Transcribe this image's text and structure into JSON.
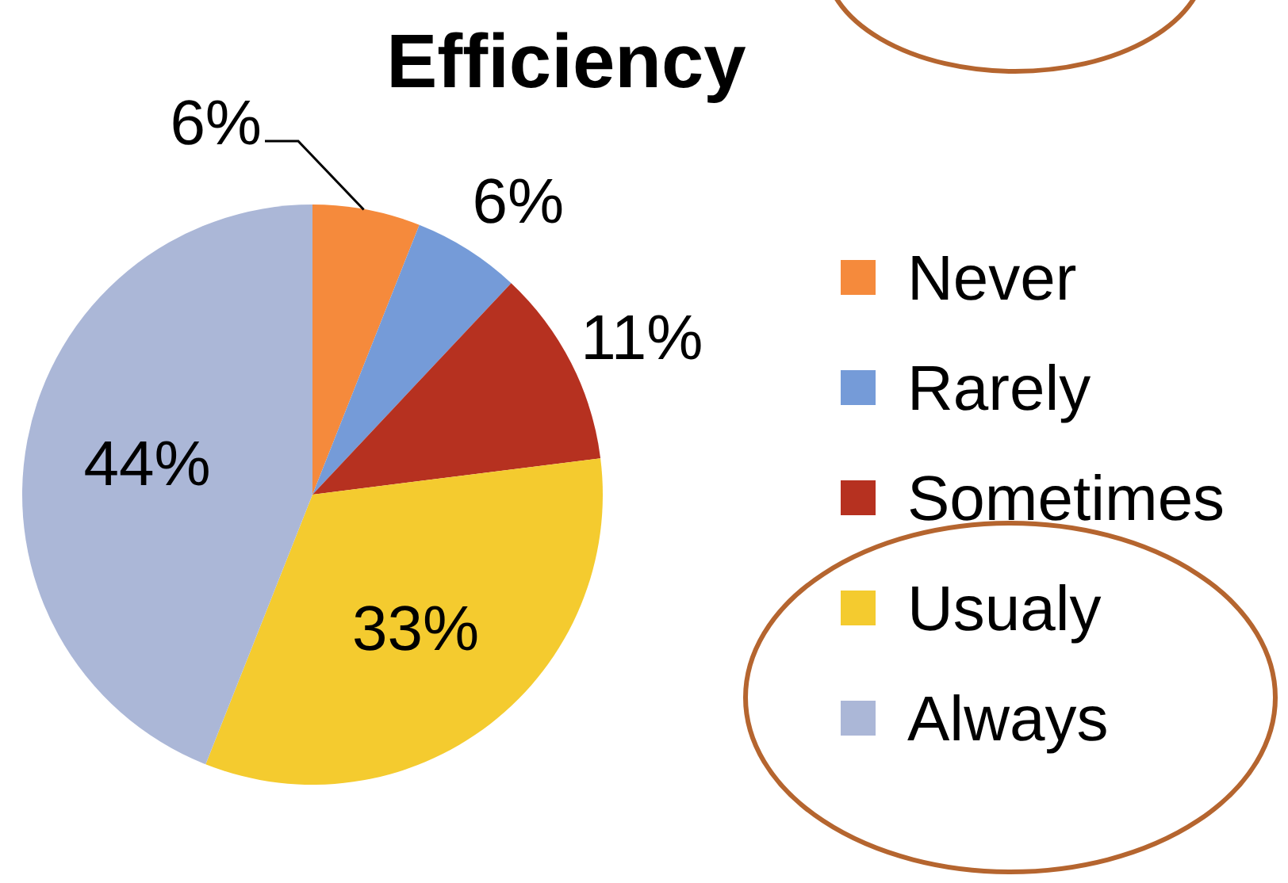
{
  "chart_data": {
    "type": "pie",
    "title": "Efficiency",
    "categories": [
      "Never",
      "Rarely",
      "Sometimes",
      "Usualy",
      "Always"
    ],
    "values": [
      6,
      6,
      11,
      33,
      44
    ],
    "colors": [
      "#f58a3c",
      "#759bd8",
      "#b63120",
      "#f4cb2f",
      "#abb7d7"
    ],
    "value_labels": [
      "6%",
      "6%",
      "11%",
      "33%",
      "44%"
    ],
    "legend": "right"
  }
}
